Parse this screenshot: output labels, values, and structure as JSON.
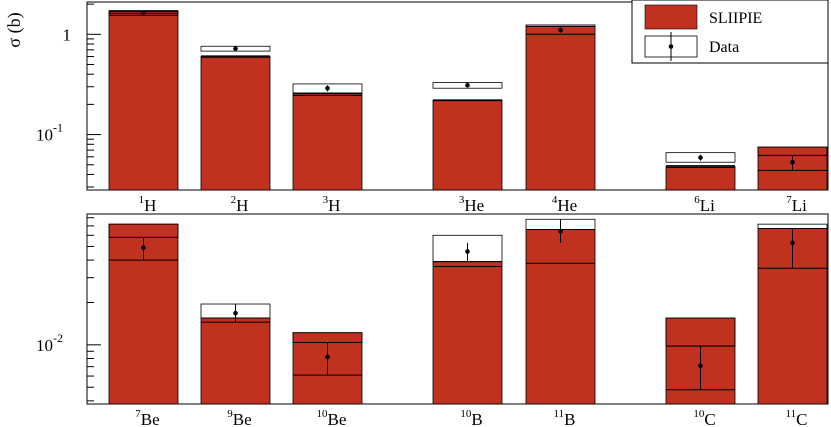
{
  "chart_data": {
    "type": "bar",
    "ylabel": "σ (b)",
    "legend": {
      "position": "top-right",
      "entries": [
        {
          "label": "SLIIPIE",
          "style": "filled-bar",
          "color": "#C0311F"
        },
        {
          "label": "Data",
          "style": "box-with-point"
        }
      ]
    },
    "colors": {
      "bar": "#C0311F",
      "frame": "#000000"
    },
    "panels": [
      {
        "scale": "log",
        "ylim": [
          0.028,
          2.1
        ],
        "yticks": [
          {
            "value": 1,
            "label": "1"
          },
          {
            "value": 0.1,
            "label": "10^-1"
          }
        ],
        "nuclides": [
          {
            "mass": "1",
            "symbol": "H",
            "model": 1.72,
            "model_band": [
              1.55,
              1.72
            ],
            "data": 1.65,
            "data_band": [
              1.62,
              1.68
            ],
            "data_err": [
              1.58,
              1.72
            ]
          },
          {
            "mass": "2",
            "symbol": "H",
            "model": 0.6,
            "model_band": [
              0.59,
              0.61
            ],
            "data": 0.72,
            "data_band": [
              0.68,
              0.76
            ],
            "data_err": [
              0.7,
              0.75
            ]
          },
          {
            "mass": "3",
            "symbol": "H",
            "model": 0.255,
            "model_band": [
              0.245,
              0.258
            ],
            "data": 0.29,
            "data_band": [
              0.26,
              0.32
            ],
            "data_err": [
              0.27,
              0.31
            ]
          },
          {
            "mass": "3",
            "symbol": "He",
            "model": 0.22,
            "model_band": [
              0.218,
              0.222
            ],
            "data": 0.31,
            "data_band": [
              0.29,
              0.33
            ],
            "data_err": [
              0.3,
              0.32
            ]
          },
          {
            "mass": "4",
            "symbol": "He",
            "model": 1.2,
            "model_band": [
              1.0,
              1.2
            ],
            "data": 1.1,
            "data_band": [
              1.2,
              1.24
            ],
            "data_err": [
              1.04,
              1.18
            ]
          },
          {
            "mass": "6",
            "symbol": "Li",
            "model": 0.048,
            "model_band": [
              0.047,
              0.049
            ],
            "data": 0.059,
            "data_band": [
              0.053,
              0.066
            ],
            "data_err": [
              0.055,
              0.063
            ]
          },
          {
            "mass": "7",
            "symbol": "Li",
            "model": 0.075,
            "model_band": [
              0.044,
              0.062
            ],
            "data": 0.053,
            "data_band": [
              0.062,
              0.075
            ],
            "data_err": [
              0.044,
              0.062
            ]
          }
        ]
      },
      {
        "scale": "log",
        "ylim": [
          0.0038,
          0.085
        ],
        "yticks": [
          {
            "value": 0.01,
            "label": "10^-2"
          }
        ],
        "nuclides": [
          {
            "mass": "7",
            "symbol": "Be",
            "model": 0.072,
            "model_band": [
              0.04,
              0.058
            ],
            "data": 0.049,
            "data_band": [
              0.058,
              0.072
            ],
            "data_err": [
              0.04,
              0.058
            ]
          },
          {
            "mass": "9",
            "symbol": "Be",
            "model": 0.0155,
            "model_band": [
              0.0145,
              0.0155
            ],
            "data": 0.0168,
            "data_band": [
              0.0155,
              0.0195
            ],
            "data_err": [
              0.0145,
              0.0195
            ]
          },
          {
            "mass": "10",
            "symbol": "Be",
            "model": 0.0122,
            "model_band": [
              0.0061,
              0.0104
            ],
            "data": 0.0082,
            "data_band": [
              0.0104,
              0.0122
            ],
            "data_err": [
              0.0061,
              0.0104
            ]
          },
          {
            "mass": "10",
            "symbol": "B",
            "model": 0.039,
            "model_band": [
              0.036,
              0.039
            ],
            "data": 0.046,
            "data_band": [
              0.039,
              0.06
            ],
            "data_err": [
              0.039,
              0.053
            ]
          },
          {
            "mass": "11",
            "symbol": "B",
            "model": 0.066,
            "model_band": [
              0.038,
              0.066
            ],
            "data": 0.064,
            "data_band": [
              0.066,
              0.078
            ],
            "data_err": [
              0.053,
              0.078
            ]
          },
          {
            "mass": "10",
            "symbol": "C",
            "model": 0.0155,
            "model_band": [
              0.0048,
              0.0098
            ],
            "data": 0.0071,
            "data_band": [
              0.0098,
              0.0155
            ],
            "data_err": [
              0.0048,
              0.0098
            ]
          },
          {
            "mass": "11",
            "symbol": "C",
            "model": 0.067,
            "model_band": [
              0.035,
              0.067
            ],
            "data": 0.053,
            "data_band": [
              0.067,
              0.072
            ],
            "data_err": [
              0.035,
              0.067
            ]
          }
        ]
      }
    ]
  }
}
